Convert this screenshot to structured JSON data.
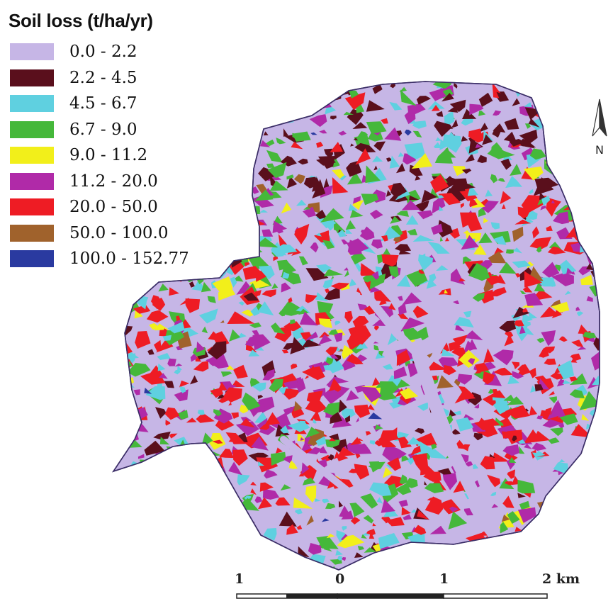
{
  "legend": {
    "title": "Soil loss (t/ha/yr)",
    "classes": [
      {
        "label": "0.0 - 2.2",
        "color": "#c6b6e6"
      },
      {
        "label": "2.2 - 4.5",
        "color": "#5a0f1c"
      },
      {
        "label": "4.5 - 6.7",
        "color": "#5fd0e0"
      },
      {
        "label": "6.7 - 9.0",
        "color": "#45b83a"
      },
      {
        "label": "9.0 - 11.2",
        "color": "#f2ef1a"
      },
      {
        "label": "11.2 - 20.0",
        "color": "#b02aa8"
      },
      {
        "label": "20.0 - 50.0",
        "color": "#ee1c24"
      },
      {
        "label": "50.0 - 100.0",
        "color": "#a0622c"
      },
      {
        "label": "100.0 - 152.77",
        "color": "#2a3aa0"
      }
    ]
  },
  "north_arrow": {
    "label": "N"
  },
  "scale_bar": {
    "ticks": [
      "1",
      "0",
      "1",
      "2 km"
    ]
  }
}
